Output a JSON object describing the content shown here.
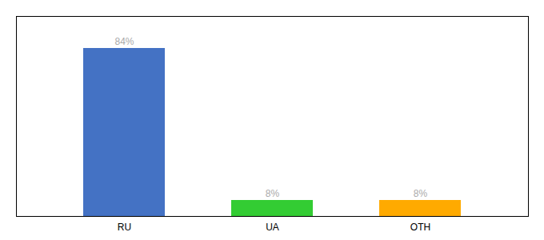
{
  "chart_data": {
    "type": "bar",
    "categories": [
      "RU",
      "UA",
      "OTH"
    ],
    "values": [
      84,
      8,
      8
    ],
    "value_labels": [
      "84%",
      "8%",
      "8%"
    ],
    "colors": [
      "#4472c4",
      "#33cc33",
      "#ffaa00"
    ],
    "ylim": [
      0,
      100
    ],
    "data_labels": true,
    "tick_labels": "x"
  }
}
